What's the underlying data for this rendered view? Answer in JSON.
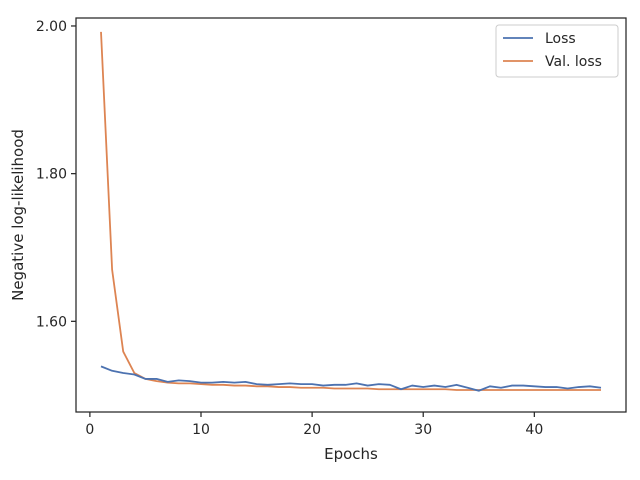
{
  "colors": {
    "loss": "#4c72b0",
    "val_loss": "#dd8452",
    "axes": "#262626"
  },
  "chart_data": {
    "type": "line",
    "xlabel": "Epochs",
    "ylabel": "Negative log-likelihood",
    "xlim": [
      -1.25,
      48.25
    ],
    "ylim": [
      1.4772,
      2.0108
    ],
    "x_ticks": [
      0,
      10,
      20,
      30,
      40
    ],
    "x_tick_labels": [
      "0",
      "10",
      "20",
      "30",
      "40"
    ],
    "y_ticks": [
      1.6,
      1.8,
      2.0
    ],
    "y_tick_labels": [
      "1.60",
      "1.80",
      "2.00"
    ],
    "legend_position": "top-right",
    "grid": false,
    "series": [
      {
        "name": "Loss",
        "x": [
          1,
          2,
          3,
          4,
          5,
          6,
          7,
          8,
          9,
          10,
          11,
          12,
          13,
          14,
          15,
          16,
          17,
          18,
          19,
          20,
          21,
          22,
          23,
          24,
          25,
          26,
          27,
          28,
          29,
          30,
          31,
          32,
          33,
          34,
          35,
          36,
          37,
          38,
          39,
          40,
          41,
          42,
          43,
          44,
          45,
          46
        ],
        "values": [
          1.539,
          1.533,
          1.53,
          1.528,
          1.522,
          1.522,
          1.518,
          1.52,
          1.519,
          1.517,
          1.517,
          1.518,
          1.517,
          1.518,
          1.515,
          1.514,
          1.515,
          1.516,
          1.515,
          1.515,
          1.513,
          1.514,
          1.514,
          1.516,
          1.513,
          1.515,
          1.514,
          1.508,
          1.513,
          1.511,
          1.513,
          1.511,
          1.514,
          1.51,
          1.506,
          1.512,
          1.51,
          1.513,
          1.513,
          1.512,
          1.511,
          1.511,
          1.509,
          1.511,
          1.512,
          1.51
        ]
      },
      {
        "name": "Val. loss",
        "x": [
          1,
          2,
          3,
          4,
          5,
          6,
          7,
          8,
          9,
          10,
          11,
          12,
          13,
          14,
          15,
          16,
          17,
          18,
          19,
          20,
          21,
          22,
          23,
          24,
          25,
          26,
          27,
          28,
          29,
          30,
          31,
          32,
          33,
          34,
          35,
          36,
          37,
          38,
          39,
          40,
          41,
          42,
          43,
          44,
          45,
          46
        ],
        "values": [
          1.992,
          1.67,
          1.559,
          1.53,
          1.522,
          1.519,
          1.517,
          1.516,
          1.516,
          1.515,
          1.514,
          1.514,
          1.513,
          1.513,
          1.512,
          1.512,
          1.511,
          1.511,
          1.51,
          1.51,
          1.51,
          1.509,
          1.509,
          1.509,
          1.509,
          1.508,
          1.508,
          1.508,
          1.508,
          1.508,
          1.508,
          1.508,
          1.507,
          1.507,
          1.507,
          1.507,
          1.507,
          1.507,
          1.507,
          1.507,
          1.507,
          1.507,
          1.507,
          1.507,
          1.507,
          1.507
        ]
      }
    ]
  }
}
